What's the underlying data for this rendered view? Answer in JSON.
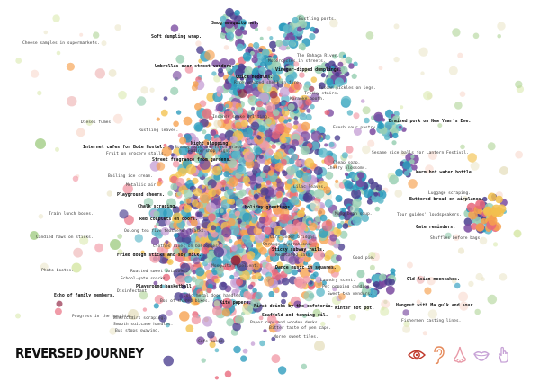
{
  "title": "REVERSED JOURNEY",
  "palette": [
    "#e8667a",
    "#f19aa6",
    "#f2c14e",
    "#f6a04d",
    "#9ad0b4",
    "#5fb8c9",
    "#2b9bbd",
    "#4b3f8f",
    "#7a4aa0",
    "#c7a2d6",
    "#d7e7a8",
    "#a8d08d",
    "#f7d6c8",
    "#eeb5b5",
    "#8c1b3a",
    "#e9e3c5"
  ],
  "senses": {
    "sight": {
      "name": "eye-icon",
      "color": "#c0392b"
    },
    "hearing": {
      "name": "ear-icon",
      "color": "#e58a5b"
    },
    "smell": {
      "name": "nose-icon",
      "color": "#e89aa8"
    },
    "taste": {
      "name": "mouth-icon",
      "color": "#c7a2d6"
    },
    "touch": {
      "name": "hand-icon",
      "color": "#c7a2d6"
    }
  },
  "labels": [
    {
      "t": "Smog mosquito net.",
      "b": true
    },
    {
      "t": "Bustling ports.",
      "b": false
    },
    {
      "t": "Cheese samples in supermarkets.",
      "b": false
    },
    {
      "t": "Soft dumpling wrap.",
      "b": true
    },
    {
      "t": "The Bahaga River.",
      "b": false
    },
    {
      "t": "Motorcycles in streets.",
      "b": false
    },
    {
      "t": "Tuscan pickles on legs.",
      "b": false
    },
    {
      "t": "Umbrellas over street vendors.",
      "b": true
    },
    {
      "t": "Vinegar-dipped dumplings.",
      "b": true
    },
    {
      "t": "Rice wrapped shell on fire.",
      "b": false
    },
    {
      "t": "Quick noodles.",
      "b": true
    },
    {
      "t": "Karaoke booth.",
      "b": false
    },
    {
      "t": "Tricky stairs.",
      "b": false
    },
    {
      "t": "Diesel fumes.",
      "b": false
    },
    {
      "t": "Braised pork on New Year's Eve.",
      "b": true
    },
    {
      "t": "Rustling leaves.",
      "b": false
    },
    {
      "t": "Incense smoke drifting.",
      "b": false
    },
    {
      "t": "Night shopping.",
      "b": true
    },
    {
      "t": "Fresh sour pastry.",
      "b": false
    },
    {
      "t": "Internet cafes for Bole Hostel.",
      "b": true
    },
    {
      "t": "Steamy soil and fresh grass.",
      "b": false
    },
    {
      "t": "Fruit on grocery stalls.",
      "b": false
    },
    {
      "t": "Sesame rice balls for Lantern Festival.",
      "b": false
    },
    {
      "t": "Fading shop signs.",
      "b": false
    },
    {
      "t": "Street fragrance from gardens.",
      "b": true
    },
    {
      "t": "Cheap soap.",
      "b": false
    },
    {
      "t": "Warm hot water bottle.",
      "b": true
    },
    {
      "t": "Boiling ice cream.",
      "b": false
    },
    {
      "t": "Playground cheers.",
      "b": true
    },
    {
      "t": "Metallic air.",
      "b": false
    },
    {
      "t": "Buttered bread on airplanes.",
      "b": true
    },
    {
      "t": "Chalk scraping.",
      "b": true
    },
    {
      "t": "Luggage scraping.",
      "b": false
    },
    {
      "t": "Train lunch boxes.",
      "b": false
    },
    {
      "t": "Tour guides' loudspeakers.",
      "b": false
    },
    {
      "t": "Red couplets on doors.",
      "b": true
    },
    {
      "t": "Holiday greetings.",
      "b": true
    },
    {
      "t": "Mung bean soup.",
      "b": false
    },
    {
      "t": "Oolong tea five teachers' flasks.",
      "b": false
    },
    {
      "t": "Candied haws on sticks.",
      "b": false
    },
    {
      "t": "Gate reminders.",
      "b": true
    },
    {
      "t": "Clothes lines on balconies.",
      "b": false
    },
    {
      "t": "Shuffles before bags.",
      "b": false
    },
    {
      "t": "Fried dough sticks and soy milk.",
      "b": true
    },
    {
      "t": "Cars under bridges.",
      "b": false
    },
    {
      "t": "Strange decorations.",
      "b": false
    },
    {
      "t": "Photo booths.",
      "b": false
    },
    {
      "t": "Mosquito repellent.",
      "b": false
    },
    {
      "t": "Sticky subway rails.",
      "b": true
    },
    {
      "t": "Medicated balm.",
      "b": false
    },
    {
      "t": "Roasted sweet potatoes.",
      "b": false
    },
    {
      "t": "Dance music in squares.",
      "b": true
    },
    {
      "t": "School-gate snacks.",
      "b": false
    },
    {
      "t": "Playground basketball.",
      "b": true
    },
    {
      "t": "Disinfectant.",
      "b": false
    },
    {
      "t": "Cold metal door handles.",
      "b": false
    },
    {
      "t": "Box of shared bikes.",
      "b": false
    },
    {
      "t": "Kite papers.",
      "b": true
    },
    {
      "t": "Echo of family members.",
      "b": true
    },
    {
      "t": "Wheelchairs scraping.",
      "b": false
    },
    {
      "t": "Smooth suitcase handles.",
      "b": false
    },
    {
      "t": "Bus stops swaying.",
      "b": false
    },
    {
      "t": "Progress in the hospital.",
      "b": false
    },
    {
      "t": "First drinks by the cafeteria.",
      "b": true
    },
    {
      "t": "Scaffold and tanning oil.",
      "b": true
    },
    {
      "t": "Paper cups and wooden desks.",
      "b": false
    },
    {
      "t": "Bitter taste of pen caps.",
      "b": false
    },
    {
      "t": "Winter hot pot.",
      "b": true
    },
    {
      "t": "Morse sweet tiles.",
      "b": false
    },
    {
      "t": "Cafe music.",
      "b": false
    },
    {
      "t": "Old Asian mooncakes.",
      "b": true
    },
    {
      "t": "Hangnut with Ma gulk and sour.",
      "b": true
    },
    {
      "t": "Fishermen casting lines.",
      "b": false
    },
    {
      "t": "Pet popping candies.",
      "b": false
    },
    {
      "t": "Sweet tea vendors.",
      "b": false
    },
    {
      "t": "Laundry scent.",
      "b": false
    },
    {
      "t": "Good pie.",
      "b": false
    },
    {
      "t": "Cherry blossoms.",
      "b": false
    },
    {
      "t": "Lilac leaves.",
      "b": false
    }
  ]
}
